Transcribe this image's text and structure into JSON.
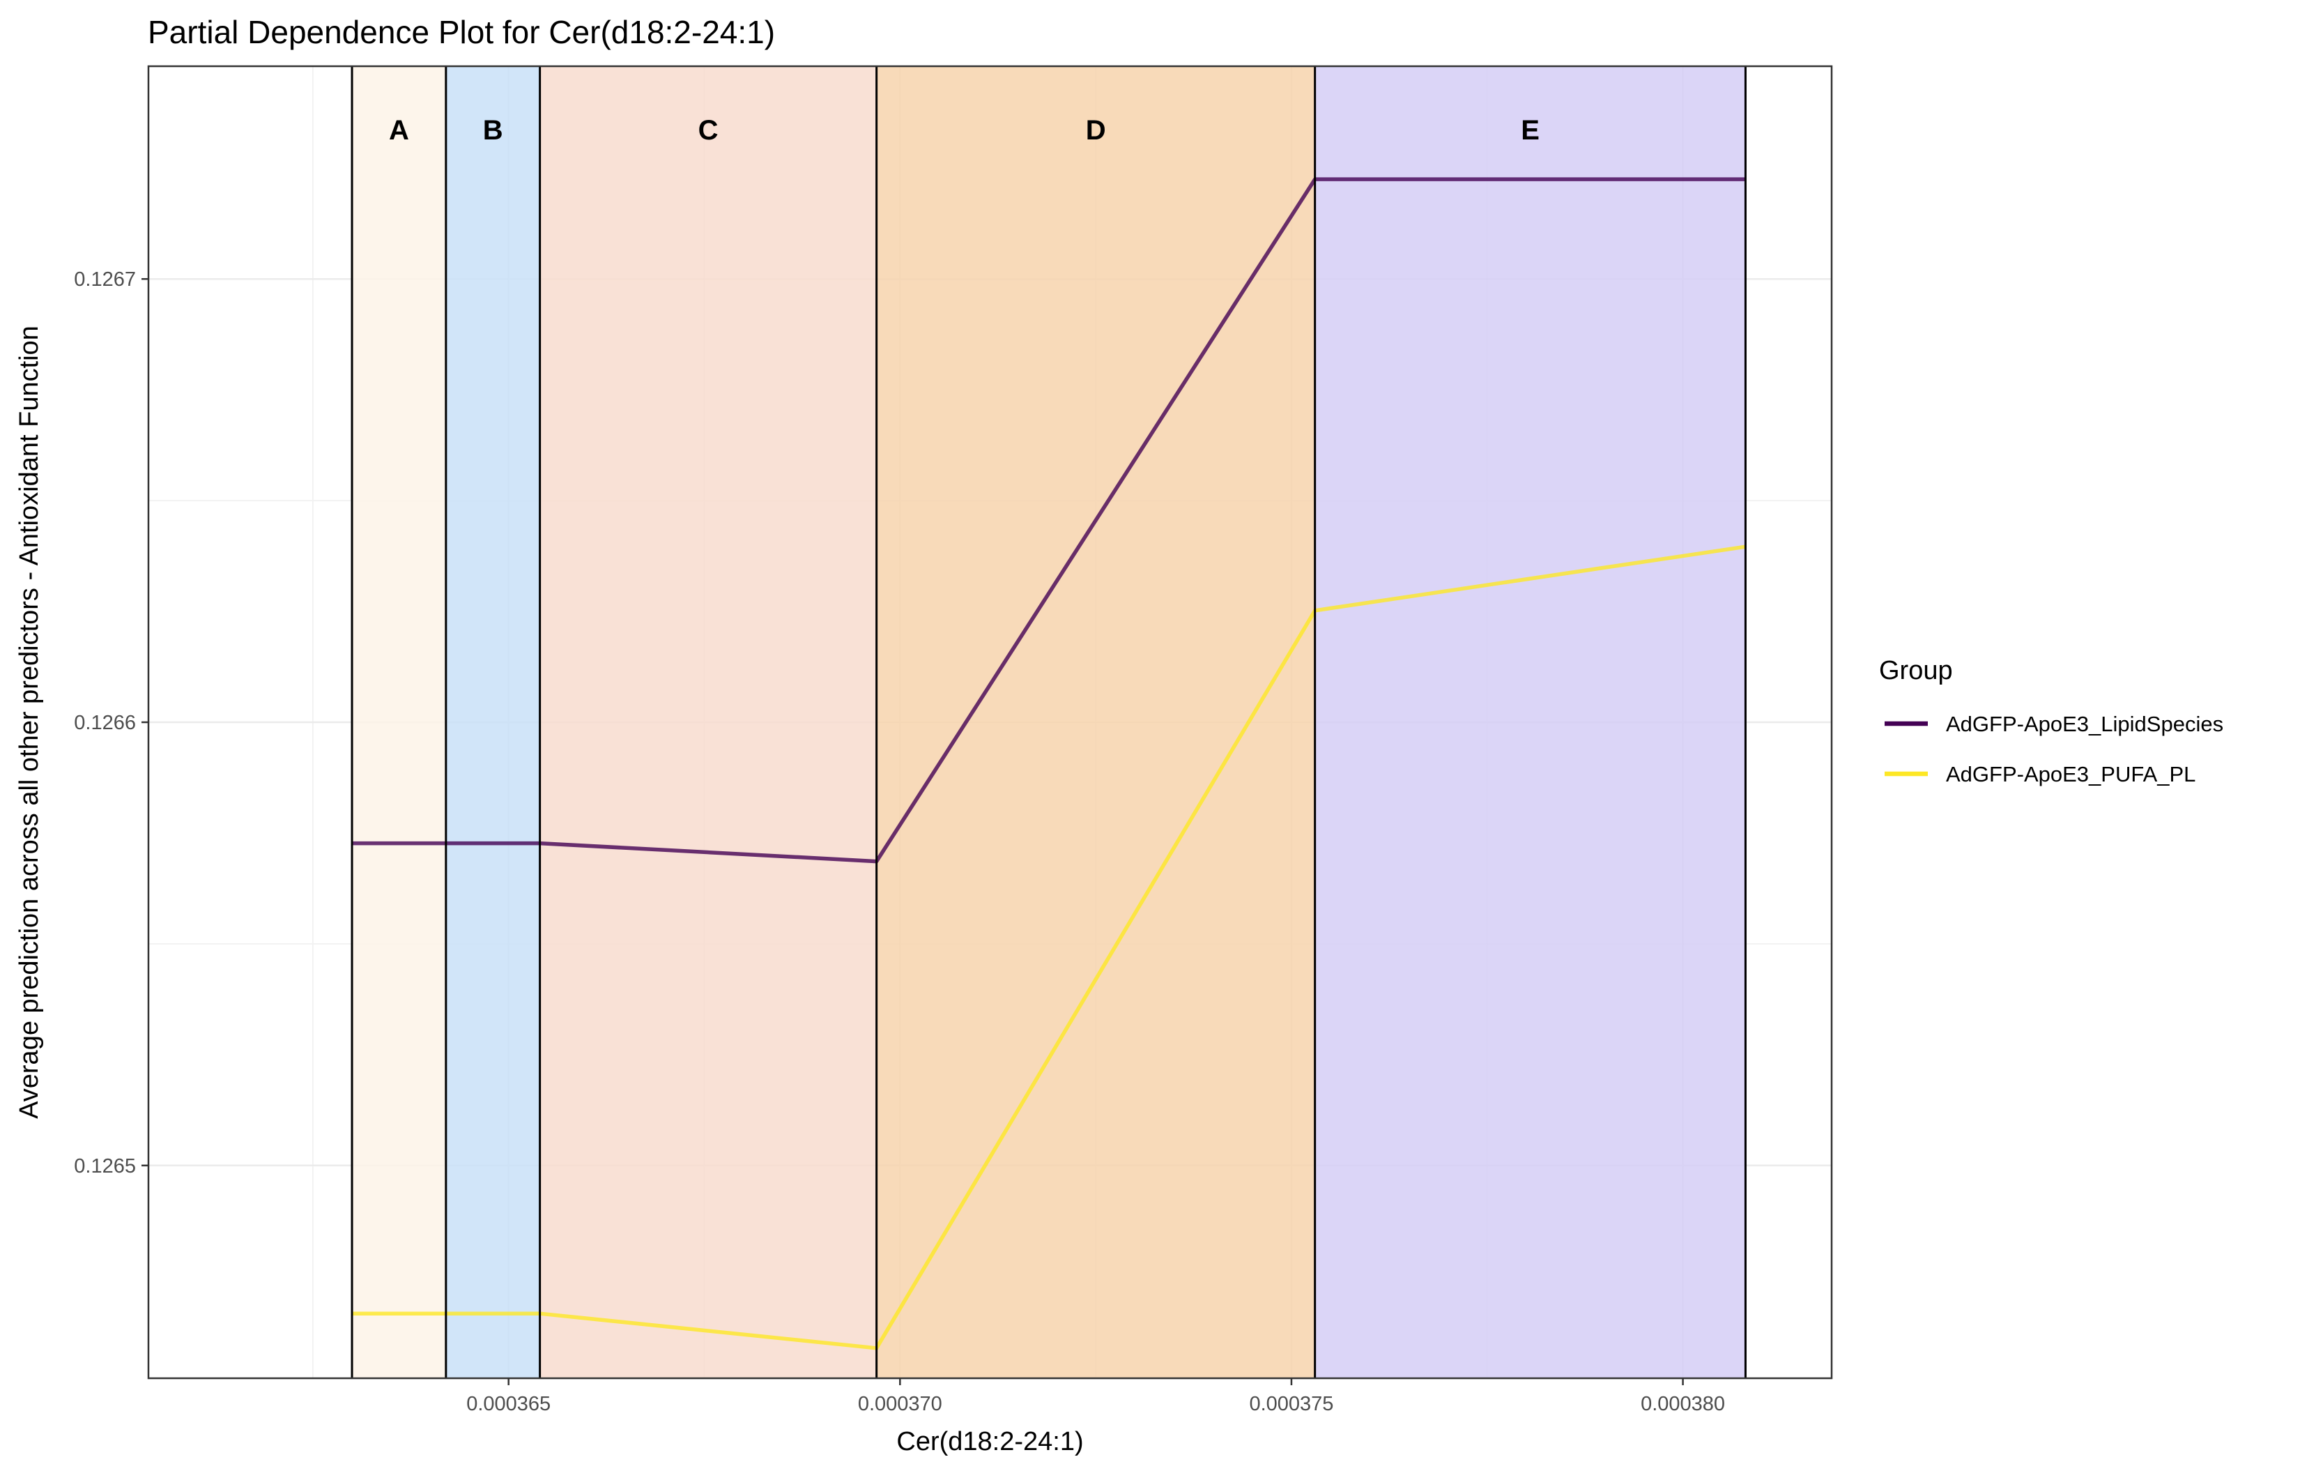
{
  "chart_data": {
    "type": "line",
    "title": "Partial Dependence Plot for Cer(d18:2-24:1)",
    "xlabel": "Cer(d18:2-24:1)",
    "ylabel": "Average prediction across all other predictors - Antioxidant Function",
    "x_ticks": [
      {
        "value": 0.000365,
        "label": "0.000365"
      },
      {
        "value": 0.00037,
        "label": "0.000370"
      },
      {
        "value": 0.000375,
        "label": "0.000375"
      },
      {
        "value": 0.00038,
        "label": "0.000380"
      }
    ],
    "y_ticks": [
      {
        "value": 0.1265,
        "label": "0.1265"
      },
      {
        "value": 0.1266,
        "label": "0.1266"
      },
      {
        "value": 0.1267,
        "label": "0.1267"
      }
    ],
    "xlim": [
      0.0003604,
      0.0003819
    ],
    "ylim": [
      0.126452,
      0.126748
    ],
    "grid": true,
    "legend": {
      "title": "Group",
      "placement": "right"
    },
    "regions": [
      {
        "label": "A",
        "x0": 0.000363,
        "x1": 0.0003642,
        "color": "#fdf3e7"
      },
      {
        "label": "B",
        "x0": 0.0003642,
        "x1": 0.0003654,
        "color": "#c9e1f8"
      },
      {
        "label": "C",
        "x0": 0.0003654,
        "x1": 0.0003697,
        "color": "#f8dccf"
      },
      {
        "label": "D",
        "x0": 0.0003697,
        "x1": 0.0003753,
        "color": "#f7d3ad"
      },
      {
        "label": "E",
        "x0": 0.0003753,
        "x1": 0.0003808,
        "color": "#d5cef6"
      }
    ],
    "series": [
      {
        "name": "AdGFP-ApoE3_LipidSpecies",
        "color": "#440154",
        "x": [
          0.000363,
          0.0003654,
          0.0003697,
          0.0003753,
          0.0003808
        ],
        "y": [
          0.1265727,
          0.1265727,
          0.1265686,
          0.1267225,
          0.1267225
        ]
      },
      {
        "name": "AdGFP-ApoE3_PUFA_PL",
        "color": "#fde725",
        "x": [
          0.000363,
          0.0003654,
          0.0003697,
          0.0003753,
          0.0003808
        ],
        "y": [
          0.1264666,
          0.1264666,
          0.1264588,
          0.1266252,
          0.1266396
        ]
      }
    ]
  }
}
